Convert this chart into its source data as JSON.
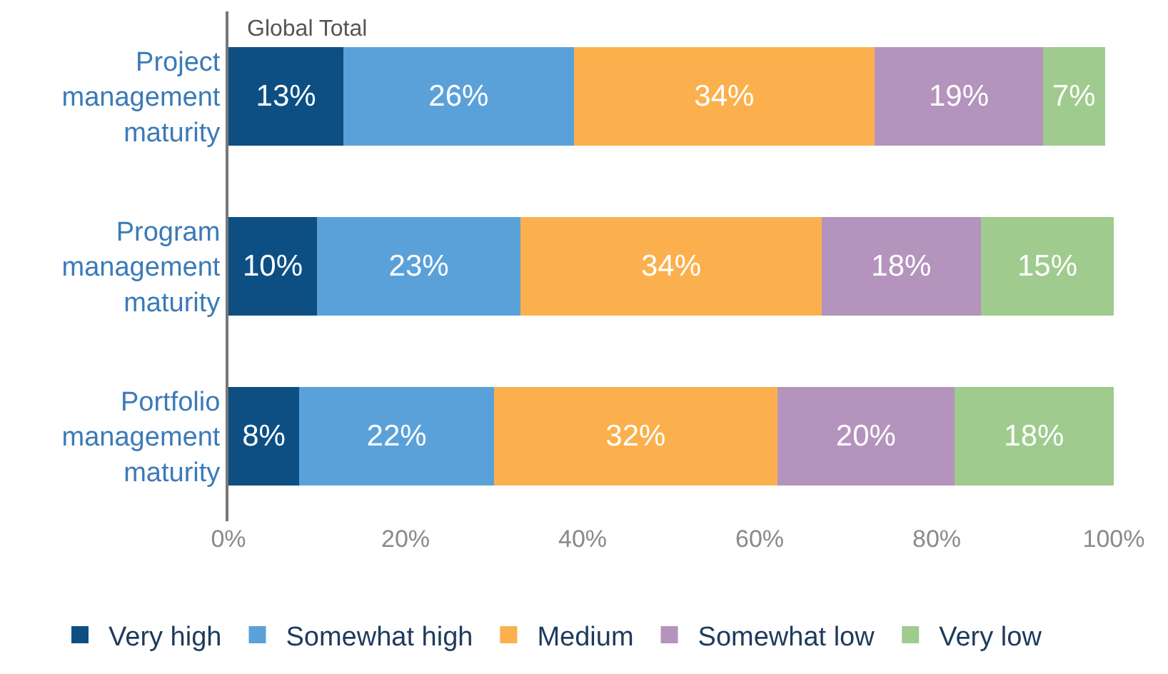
{
  "chart_data": {
    "type": "bar",
    "orientation": "horizontal",
    "stacked": true,
    "title": "Global Total",
    "categories": [
      "Project management maturity",
      "Program management maturity",
      "Portfolio management maturity"
    ],
    "series": [
      {
        "name": "Very high",
        "color": "#0d4f83",
        "values": [
          13,
          10,
          8
        ],
        "value_labels": [
          "13%",
          "10%",
          "8%"
        ]
      },
      {
        "name": "Somewhat high",
        "color": "#5ba1d9",
        "values": [
          26,
          23,
          22
        ],
        "value_labels": [
          "26%",
          "23%",
          "22%"
        ]
      },
      {
        "name": "Medium",
        "color": "#fbb04d",
        "values": [
          34,
          34,
          32
        ],
        "value_labels": [
          "34%",
          "34%",
          "32%"
        ]
      },
      {
        "name": "Somewhat low",
        "color": "#b493bd",
        "values": [
          19,
          18,
          20
        ],
        "value_labels": [
          "19%",
          "18%",
          "20%"
        ]
      },
      {
        "name": "Very low",
        "color": "#9fcb8e",
        "values": [
          7,
          15,
          18
        ],
        "value_labels": [
          "7%",
          "15%",
          "18%"
        ]
      }
    ],
    "xlim": [
      0,
      100
    ],
    "xticks": [
      {
        "value": 0,
        "label": "0%"
      },
      {
        "value": 20,
        "label": "20%"
      },
      {
        "value": 40,
        "label": "40%"
      },
      {
        "value": 60,
        "label": "60%"
      },
      {
        "value": 80,
        "label": "80%"
      },
      {
        "value": 100,
        "label": "100%"
      }
    ],
    "grid": false,
    "legend": "bottom"
  }
}
